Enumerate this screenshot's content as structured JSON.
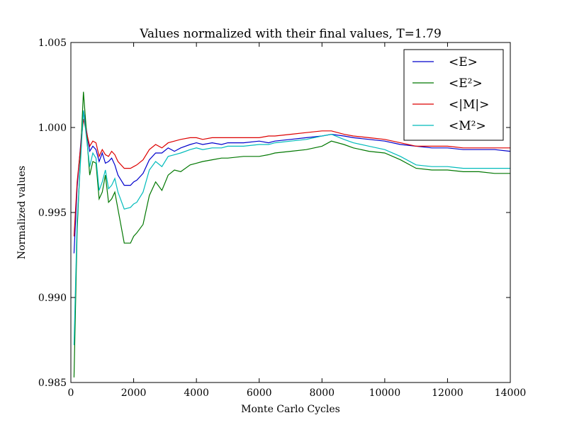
{
  "chart_data": {
    "type": "line",
    "title": "Values normalized with their final values, T=1.79",
    "xlabel": "Monte Carlo Cycles",
    "ylabel": "Normalized values",
    "xlim": [
      0,
      14000
    ],
    "ylim": [
      0.985,
      1.005
    ],
    "x_ticks": [
      "0",
      "2000",
      "4000",
      "6000",
      "8000",
      "10000",
      "12000",
      "14000"
    ],
    "y_ticks": [
      "0.985",
      "0.990",
      "0.995",
      "1.000",
      "1.005"
    ],
    "grid": false,
    "legend_position": "top-right",
    "x": [
      100,
      200,
      400,
      600,
      700,
      800,
      900,
      1000,
      1100,
      1200,
      1300,
      1400,
      1500,
      1700,
      1900,
      2000,
      2100,
      2300,
      2500,
      2700,
      2900,
      3100,
      3300,
      3500,
      3800,
      4000,
      4200,
      4500,
      4800,
      5000,
      5500,
      6000,
      6300,
      6500,
      7000,
      7500,
      8000,
      8300,
      8700,
      9000,
      9500,
      10000,
      10500,
      11000,
      11500,
      12000,
      12500,
      13000,
      13500,
      14000
    ],
    "series": [
      {
        "name": "<E>",
        "color": "#0000cc",
        "values": [
          0.9926,
          0.9965,
          1.001,
          0.9986,
          0.9989,
          0.9987,
          0.998,
          0.9985,
          0.9979,
          0.998,
          0.9982,
          0.9978,
          0.9972,
          0.9966,
          0.9966,
          0.9968,
          0.9969,
          0.9973,
          0.9981,
          0.9985,
          0.9985,
          0.9988,
          0.9986,
          0.9988,
          0.999,
          0.9991,
          0.999,
          0.9991,
          0.999,
          0.9991,
          0.9991,
          0.9992,
          0.9991,
          0.9992,
          0.9993,
          0.9994,
          0.9995,
          0.9996,
          0.9995,
          0.9994,
          0.9993,
          0.9992,
          0.999,
          0.9989,
          0.9988,
          0.9988,
          0.9987,
          0.9987,
          0.9987,
          0.9986
        ]
      },
      {
        "name": "<E²>",
        "color": "#007700",
        "values": [
          0.9853,
          0.994,
          1.0021,
          0.9972,
          0.998,
          0.9979,
          0.9958,
          0.9962,
          0.9972,
          0.9956,
          0.9958,
          0.9962,
          0.9952,
          0.9932,
          0.9932,
          0.9936,
          0.9938,
          0.9943,
          0.996,
          0.9968,
          0.9963,
          0.9972,
          0.9975,
          0.9974,
          0.9978,
          0.9979,
          0.998,
          0.9981,
          0.9982,
          0.9982,
          0.9983,
          0.9983,
          0.9984,
          0.9985,
          0.9986,
          0.9987,
          0.9989,
          0.9992,
          0.999,
          0.9988,
          0.9986,
          0.9985,
          0.9981,
          0.9976,
          0.9975,
          0.9975,
          0.9974,
          0.9974,
          0.9973,
          0.9973
        ]
      },
      {
        "name": "<|M|>",
        "color": "#dd0000",
        "values": [
          0.9936,
          0.9968,
          1.0005,
          0.9989,
          0.9992,
          0.9991,
          0.9983,
          0.9987,
          0.9984,
          0.9983,
          0.9986,
          0.9984,
          0.998,
          0.9976,
          0.9976,
          0.9977,
          0.9978,
          0.9981,
          0.9987,
          0.999,
          0.9988,
          0.9991,
          0.9992,
          0.9993,
          0.9994,
          0.9994,
          0.9993,
          0.9994,
          0.9994,
          0.9994,
          0.9994,
          0.9994,
          0.9995,
          0.9995,
          0.9996,
          0.9997,
          0.9998,
          0.9998,
          0.9996,
          0.9995,
          0.9994,
          0.9993,
          0.9991,
          0.9989,
          0.9989,
          0.9989,
          0.9988,
          0.9988,
          0.9988,
          0.9988
        ]
      },
      {
        "name": "<M²>",
        "color": "#00bbbb",
        "values": [
          0.9872,
          0.9945,
          1.001,
          0.9977,
          0.9985,
          0.9982,
          0.9963,
          0.9968,
          0.9975,
          0.9964,
          0.9966,
          0.997,
          0.9962,
          0.9952,
          0.9953,
          0.9955,
          0.9956,
          0.9962,
          0.9975,
          0.998,
          0.9977,
          0.9983,
          0.9984,
          0.9985,
          0.9987,
          0.9988,
          0.9987,
          0.9988,
          0.9988,
          0.9989,
          0.9989,
          0.999,
          0.999,
          0.9991,
          0.9992,
          0.9993,
          0.9995,
          0.9996,
          0.9993,
          0.9991,
          0.9989,
          0.9987,
          0.9983,
          0.9978,
          0.9977,
          0.9977,
          0.9976,
          0.9976,
          0.9976,
          0.9976
        ]
      }
    ]
  }
}
